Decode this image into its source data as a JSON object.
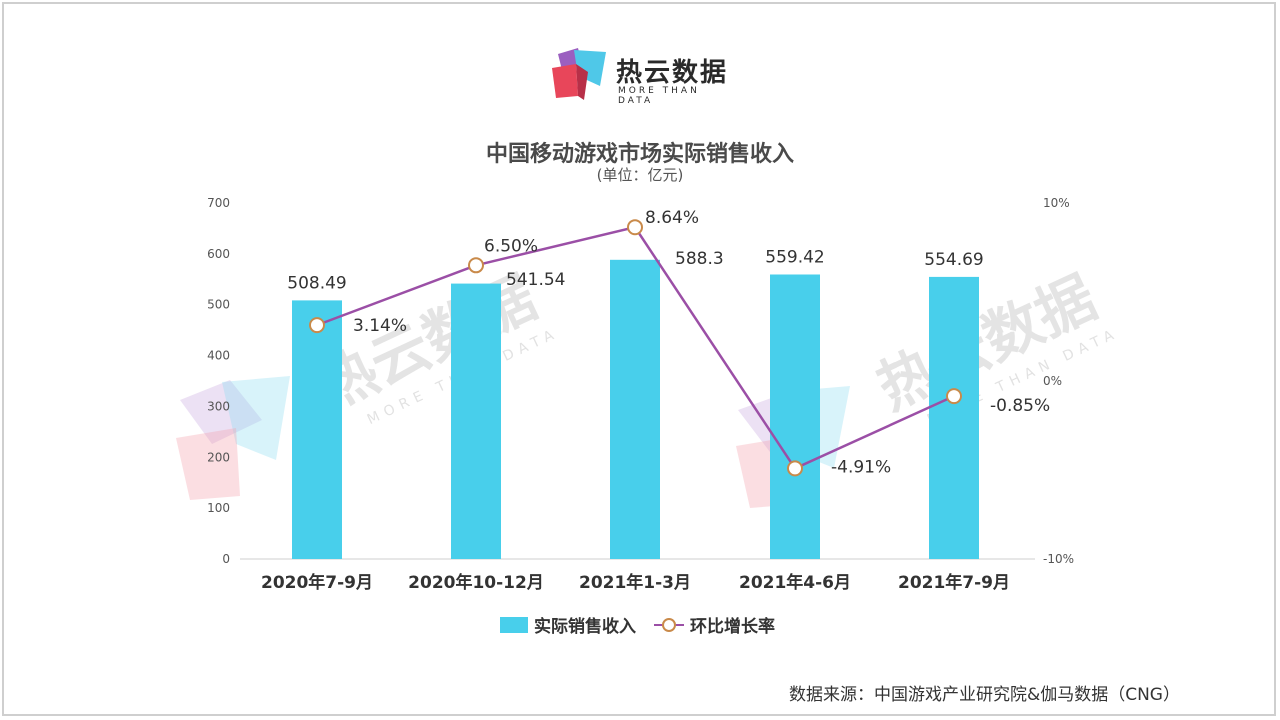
{
  "brand": {
    "name": "热云数据",
    "tagline": "MORE THAN DATA"
  },
  "source_text": "数据来源：中国游戏产业研究院&伽马数据（CNG）",
  "colors": {
    "bar": "#48cfeb",
    "line": "#9b4fa6",
    "marker_stroke": "#c98a4a",
    "marker_fill": "#ffffff"
  },
  "chart_data": {
    "type": "bar",
    "title": "中国移动游戏市场实际销售收入",
    "subtitle": "(单位：亿元)",
    "categories": [
      "2020年7-9月",
      "2020年10-12月",
      "2021年1-3月",
      "2021年4-6月",
      "2021年7-9月"
    ],
    "series": [
      {
        "name": "实际销售收入",
        "type": "bar",
        "axis": "left",
        "values": [
          508.49,
          541.54,
          588.3,
          559.42,
          554.69
        ],
        "labels": [
          "508.49",
          "541.54",
          "588.3",
          "559.42",
          "554.69"
        ]
      },
      {
        "name": "环比增长率",
        "type": "line",
        "axis": "right",
        "values": [
          3.14,
          6.5,
          8.64,
          -4.91,
          -0.85
        ],
        "labels": [
          "3.14%",
          "6.50%",
          "8.64%",
          "-4.91%",
          "-0.85%"
        ]
      }
    ],
    "ylim": [
      0,
      700
    ],
    "y_ticks": [
      "0",
      "100",
      "200",
      "300",
      "400",
      "500",
      "600",
      "700"
    ],
    "y2lim": [
      -10,
      10
    ],
    "y2_ticks": [
      "-10%",
      "0%",
      "10%"
    ],
    "legend_position": "bottom-center",
    "grid": false
  }
}
